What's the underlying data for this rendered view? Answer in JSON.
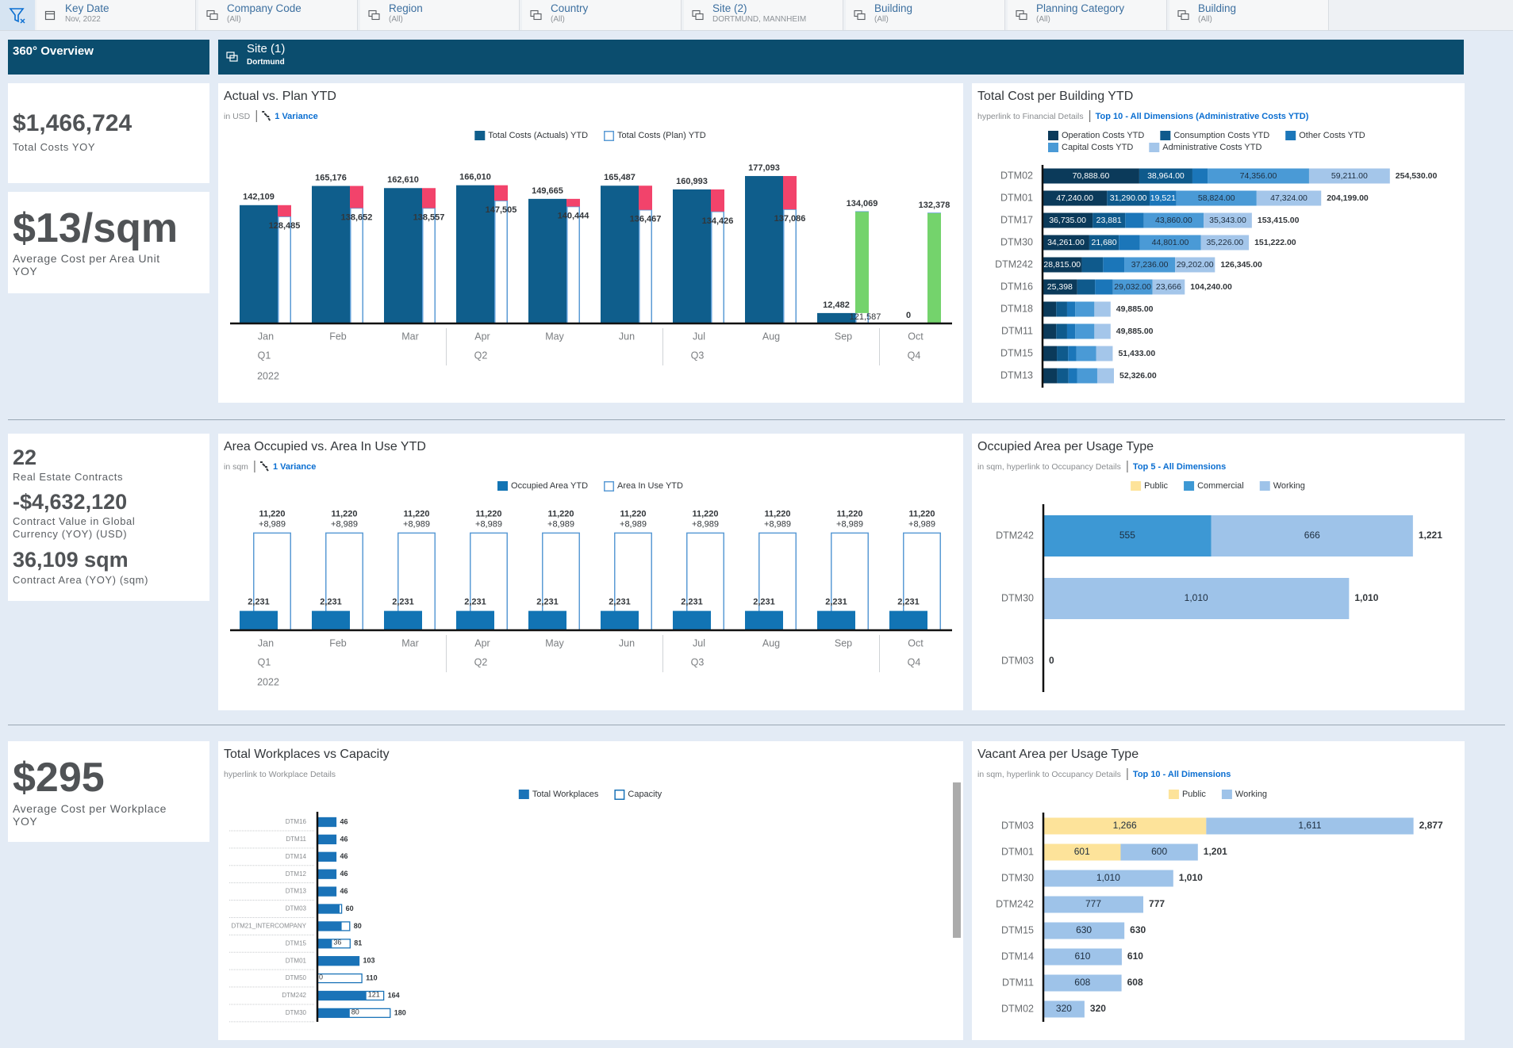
{
  "filters": [
    {
      "label": "Key Date",
      "value": "Nov, 2022"
    },
    {
      "label": "Company Code",
      "value": "(All)"
    },
    {
      "label": "Region",
      "value": "(All)"
    },
    {
      "label": "Country",
      "value": "(All)"
    },
    {
      "label": "Site (2)",
      "value": "DORTMUND, MANNHEIM"
    },
    {
      "label": "Building",
      "value": "(All)"
    },
    {
      "label": "Planning Category",
      "value": "(All)"
    },
    {
      "label": "Building",
      "value": "(All)"
    }
  ],
  "section_title": "360° Overview",
  "site_header": {
    "title": "Site (1)",
    "subtitle": "Dortmund"
  },
  "kpis": [
    {
      "value": "$1,466,724",
      "label": "Total Costs YOY"
    },
    {
      "value": "$13/sqm",
      "label": "Average Cost per Area Unit YOY"
    },
    {
      "items": [
        {
          "value": "22",
          "label": "Real Estate Contracts"
        },
        {
          "value": "-$4,632,120",
          "label": "Contract Value in Global Currency (YOY) (USD)"
        },
        {
          "value": "36,109 sqm",
          "label": "Contract Area (YOY) (sqm)"
        }
      ]
    },
    {
      "value": "$295",
      "label": "Average Cost per Workplace YOY"
    }
  ],
  "chart_data": [
    {
      "type": "bar",
      "title": "Actual vs. Plan YTD",
      "subtitle": "in USD",
      "link": "1 Variance",
      "categories": [
        "Jan",
        "Feb",
        "Mar",
        "Apr",
        "May",
        "Jun",
        "Jul",
        "Aug",
        "Sep",
        "Oct"
      ],
      "quarters": [
        "Q1",
        null,
        null,
        "Q2",
        null,
        null,
        "Q3",
        null,
        null,
        "Q4"
      ],
      "year": "2022",
      "ylim": [
        0,
        200000
      ],
      "series": [
        {
          "name": "Total Costs (Actuals) YTD",
          "color": "#0f5e8c",
          "values": [
            142109,
            165176,
            162610,
            166010,
            149665,
            165487,
            160993,
            177093,
            12482,
            0
          ],
          "value_labels": [
            "142,109",
            "165,176",
            "162,610",
            "166,010",
            "149,665",
            "165,487",
            "160,993",
            "177,093",
            "12,482",
            "0"
          ]
        },
        {
          "name": "Total Costs (Plan) YTD",
          "color": "#5b9bd5",
          "style": "outline",
          "values": [
            128485,
            138652,
            138557,
            147505,
            140444,
            136467,
            134426,
            137086,
            134069,
            132378
          ],
          "value_labels": [
            "128,485",
            "138,652",
            "138,557",
            "147,505",
            "140,444",
            "136,467",
            "134,426",
            "137,086",
            "134,069",
            "132,378"
          ]
        }
      ],
      "variance": {
        "values": [
          null,
          null,
          null,
          null,
          null,
          null,
          null,
          null,
          121587,
          null
        ],
        "value_labels": [
          null,
          null,
          null,
          null,
          null,
          null,
          null,
          null,
          "121,587",
          null
        ],
        "color": "#333333"
      },
      "variance_colors": {
        "over": "#f2436b",
        "under": "#74d36c"
      }
    },
    {
      "type": "stackedbar",
      "title": "Total Cost per Building YTD",
      "subtitle": "hyperlink to Financial Details",
      "link": "Top 10 - All Dimensions (Administrative Costs YTD)",
      "categories": [
        "DTM02",
        "DTM01",
        "DTM17",
        "DTM30",
        "DTM242",
        "DTM16",
        "DTM18",
        "DTM11",
        "DTM15",
        "DTM13"
      ],
      "xlim": [
        0,
        300000
      ],
      "series": [
        {
          "name": "Operation Costs YTD",
          "color": "#0b3a5a",
          "values": [
            70888.6,
            47240,
            36735,
            34261,
            28815,
            25398,
            10000,
            10000,
            10500,
            10700
          ],
          "value_labels": [
            "70,888.60",
            "47,240.00",
            "36,735.00",
            "34,261.00",
            "28,815.00",
            "25,398",
            null,
            null,
            null,
            null
          ]
        },
        {
          "name": "Consumption Costs YTD",
          "color": "#0f5a8c",
          "values": [
            38964,
            31290,
            23881,
            21680,
            15546,
            13072,
            8000,
            8000,
            8200,
            8300
          ],
          "value_labels": [
            "38,964.00",
            "31,290.00",
            "23,881",
            "21,680",
            null,
            null,
            null,
            null,
            null,
            null
          ]
        },
        {
          "name": "Other Costs YTD",
          "color": "#1b76b9",
          "values": [
            11110.4,
            19521,
            13596,
            15254,
            15546,
            13072,
            6000,
            6000,
            6200,
            6300
          ],
          "value_labels": [
            null,
            "19,521",
            null,
            null,
            null,
            null,
            null,
            null,
            null,
            null
          ]
        },
        {
          "name": "Capital Costs YTD",
          "color": "#4a9ad6",
          "values": [
            74356,
            58824,
            43860,
            44801,
            37236,
            29032,
            14000,
            14000,
            14500,
            14800
          ],
          "value_labels": [
            "74,356.00",
            "58,824.00",
            "43,860.00",
            "44,801.00",
            "37,236.00",
            "29,032.00",
            null,
            null,
            null,
            null
          ]
        },
        {
          "name": "Administrative Costs YTD",
          "color": "#a4c6ea",
          "values": [
            59211,
            47324,
            35343,
            35226,
            29202,
            23666,
            11885,
            11885,
            12033,
            12226
          ],
          "value_labels": [
            "59,211.00",
            "47,324.00",
            "35,343.00",
            "35,226.00",
            "29,202.00",
            "23,666",
            null,
            null,
            null,
            null
          ]
        }
      ],
      "totals": [
        254530,
        204199,
        153415,
        151222,
        126345,
        104240,
        49885,
        49885,
        51433,
        52326
      ],
      "total_labels": [
        "254,530.00",
        "204,199.00",
        "153,415.00",
        "151,222.00",
        "126,345.00",
        "104,240.00",
        "49,885.00",
        "49,885.00",
        "51,433.00",
        "52,326.00"
      ]
    },
    {
      "type": "bar",
      "title": "Area Occupied vs. Area In Use YTD",
      "subtitle": "in sqm",
      "link": "1 Variance",
      "categories": [
        "Jan",
        "Feb",
        "Mar",
        "Apr",
        "May",
        "Jun",
        "Jul",
        "Aug",
        "Sep",
        "Oct"
      ],
      "quarters": [
        "Q1",
        null,
        null,
        "Q2",
        null,
        null,
        "Q3",
        null,
        null,
        "Q4"
      ],
      "year": "2022",
      "ylim": [
        0,
        14000
      ],
      "series": [
        {
          "name": "Occupied Area YTD",
          "color": "#1274b4",
          "values": [
            2231,
            2231,
            2231,
            2231,
            2231,
            2231,
            2231,
            2231,
            2231,
            2231
          ],
          "value_labels": [
            "2,231",
            "2,231",
            "2,231",
            "2,231",
            "2,231",
            "2,231",
            "2,231",
            "2,231",
            "2,231",
            "2,231"
          ]
        },
        {
          "name": "Area In Use YTD",
          "color": "#5b9bd5",
          "style": "outline",
          "values": [
            11220,
            11220,
            11220,
            11220,
            11220,
            11220,
            11220,
            11220,
            11220,
            11220
          ],
          "value_labels": [
            "11,220",
            "11,220",
            "11,220",
            "11,220",
            "11,220",
            "11,220",
            "11,220",
            "11,220",
            "11,220",
            "11,220"
          ]
        }
      ],
      "variance": {
        "values": [
          8989,
          8989,
          8989,
          8989,
          8989,
          8989,
          8989,
          8989,
          8989,
          8989
        ],
        "value_labels": [
          "+8,989",
          "+8,989",
          "+8,989",
          "+8,989",
          "+8,989",
          "+8,989",
          "+8,989",
          "+8,989",
          "+8,989",
          "+8,989"
        ],
        "color": "#e8334f"
      }
    },
    {
      "type": "stackedbar",
      "title": "Occupied Area per Usage Type",
      "subtitle": "in sqm, hyperlink to Occupancy Details",
      "link": "Top 5 - All Dimensions",
      "categories": [
        "DTM242",
        "DTM30",
        "DTM03"
      ],
      "xlim": [
        0,
        1300
      ],
      "series": [
        {
          "name": "Public",
          "color": "#fde39a",
          "values": [
            null,
            null,
            null
          ],
          "value_labels": [
            null,
            null,
            null
          ]
        },
        {
          "name": "Commercial",
          "color": "#3d98d4",
          "values": [
            555,
            null,
            null
          ],
          "value_labels": [
            "555",
            null,
            null
          ]
        },
        {
          "name": "Working",
          "color": "#9ec3e9",
          "values": [
            666,
            1010,
            null
          ],
          "value_labels": [
            "666",
            "1,010",
            null
          ]
        }
      ],
      "totals": [
        1221,
        1010,
        0
      ],
      "total_labels": [
        "1,221",
        "1,010",
        "0"
      ]
    },
    {
      "type": "hbar",
      "title": "Total Workplaces vs Capacity",
      "subtitle": "hyperlink to Workplace Details",
      "categories": [
        "DTM16",
        "DTM11",
        "DTM14",
        "DTM12",
        "DTM13",
        "DTM03",
        "DTM21_INTERCOMPANY",
        "DTM15",
        "DTM01",
        "DTM50",
        "DTM242",
        "DTM30"
      ],
      "xlim": [
        0,
        200
      ],
      "series": [
        {
          "name": "Total Workplaces",
          "color": "#1a73b8",
          "values": [
            46,
            46,
            46,
            46,
            46,
            55,
            60,
            36,
            103,
            0,
            121,
            80
          ],
          "value_labels": [
            null,
            null,
            null,
            null,
            null,
            null,
            null,
            "36",
            null,
            "0",
            "121",
            "80"
          ]
        },
        {
          "name": "Capacity",
          "color": "#1a73b8",
          "style": "outline",
          "values": [
            46,
            46,
            46,
            46,
            46,
            60,
            80,
            81,
            103,
            110,
            164,
            180
          ]
        }
      ]
    },
    {
      "type": "stackedbar",
      "title": "Vacant Area per Usage Type",
      "subtitle": "in sqm, hyperlink to Occupancy Details",
      "link": "Top 10 - All Dimensions",
      "categories": [
        "DTM03",
        "DTM01",
        "DTM30",
        "DTM242",
        "DTM15",
        "DTM14",
        "DTM11",
        "DTM02"
      ],
      "xlim": [
        0,
        3200
      ],
      "series": [
        {
          "name": "Public",
          "color": "#fde39a",
          "values": [
            1266,
            601,
            null,
            null,
            null,
            null,
            null,
            null
          ],
          "value_labels": [
            "1,266",
            "601",
            null,
            null,
            null,
            null,
            null,
            null
          ]
        },
        {
          "name": "Working",
          "color": "#9ec3e9",
          "values": [
            1611,
            600,
            1010,
            777,
            630,
            610,
            608,
            320
          ],
          "value_labels": [
            "1,611",
            "600",
            "1,010",
            "777",
            "630",
            "610",
            "608",
            "320"
          ]
        }
      ],
      "totals": [
        2877,
        1201,
        1010,
        777,
        630,
        610,
        608,
        320
      ],
      "total_labels": [
        "2,877",
        "1,201",
        "1,010",
        "777",
        "630",
        "610",
        "608",
        "320"
      ]
    }
  ]
}
